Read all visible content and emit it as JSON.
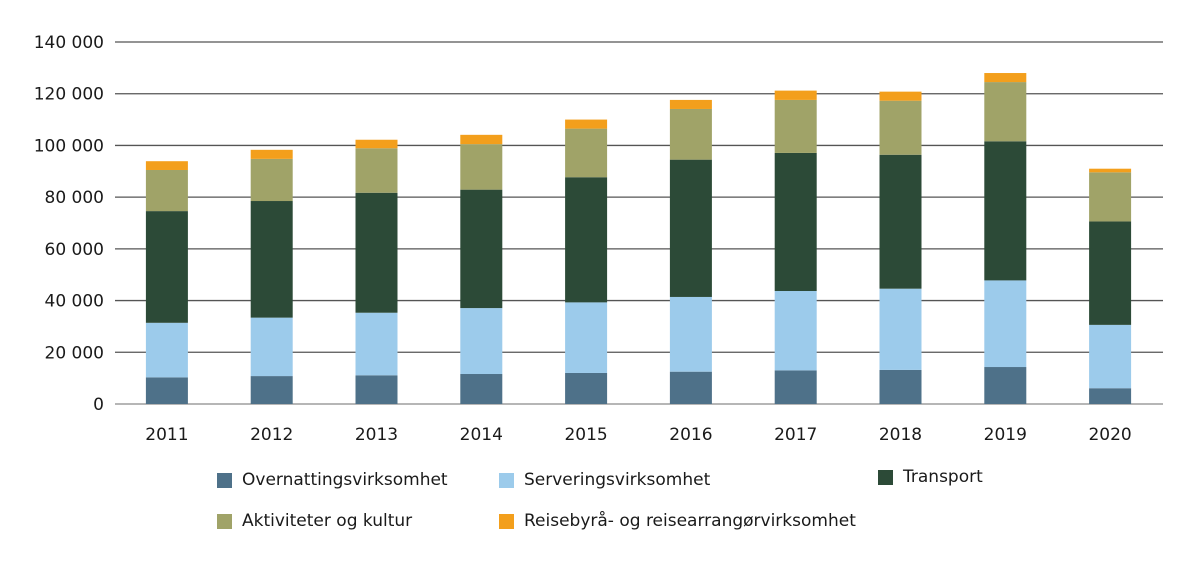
{
  "chart_data": {
    "type": "bar",
    "stacked": true,
    "title": "",
    "xlabel": "",
    "ylabel": "",
    "ylim": [
      0,
      140000
    ],
    "yticks": [
      0,
      20000,
      40000,
      60000,
      80000,
      100000,
      120000,
      140000
    ],
    "ytick_labels": [
      "0",
      "20 000",
      "40 000",
      "60 000",
      "80 000",
      "100 000",
      "120 000",
      "140 000"
    ],
    "grid": true,
    "legend_position": "bottom",
    "categories": [
      "2011",
      "2012",
      "2013",
      "2014",
      "2015",
      "2016",
      "2017",
      "2018",
      "2019",
      "2020"
    ],
    "series": [
      {
        "name": "Overnattingsvirksomhet",
        "color": "#4e7189",
        "values": [
          10300,
          10800,
          11100,
          11600,
          12000,
          12500,
          13000,
          13200,
          14300,
          6100
        ]
      },
      {
        "name": "Serveringsvirksomhet",
        "color": "#9ccbeb",
        "values": [
          21100,
          22600,
          24200,
          25500,
          27300,
          28900,
          30700,
          31400,
          33500,
          24500
        ]
      },
      {
        "name": "Transport",
        "color": "#2c4a37",
        "values": [
          43200,
          45100,
          46400,
          45800,
          48400,
          53100,
          53400,
          51800,
          53800,
          40000
        ]
      },
      {
        "name": "Aktiviteter og kultur",
        "color": "#a0a368",
        "values": [
          15900,
          16300,
          17200,
          17600,
          18800,
          19600,
          20500,
          20900,
          22900,
          19000
        ]
      },
      {
        "name": "Reisebyrå- og reisearrangørvirksomhet",
        "color": "#f39f1c",
        "values": [
          3400,
          3500,
          3300,
          3600,
          3500,
          3500,
          3600,
          3500,
          3500,
          1400
        ]
      }
    ]
  }
}
